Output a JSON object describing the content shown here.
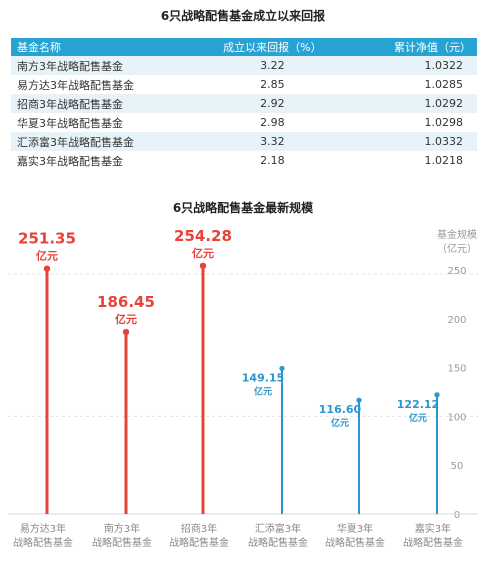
{
  "table_title": "6只战略配售基金成立以来回报",
  "table": {
    "headers": [
      "基金名称",
      "成立以来回报（%）",
      "累计净值（元）"
    ],
    "rows": [
      [
        "南方3年战略配售基金",
        "3.22",
        "1.0322"
      ],
      [
        "易方达3年战略配售基金",
        "2.85",
        "1.0285"
      ],
      [
        "招商3年战略配售基金",
        "2.92",
        "1.0292"
      ],
      [
        "华夏3年战略配售基金",
        "2.98",
        "1.0298"
      ],
      [
        "汇添富3年战略配售基金",
        "3.32",
        "1.0332"
      ],
      [
        "嘉实3年战略配售基金",
        "2.18",
        "1.0218"
      ]
    ]
  },
  "chart_data": {
    "type": "bar",
    "title": "6只战略配售基金最新规模",
    "ylabel_line1": "基金规模",
    "ylabel_line2": "（亿元）",
    "ylim": [
      0,
      250
    ],
    "yticks": [
      0,
      50,
      100,
      150,
      200,
      250
    ],
    "unit": "亿元",
    "categories": [
      [
        "易方达3年",
        "战略配售基金"
      ],
      [
        "南方3年",
        "战略配售基金"
      ],
      [
        "招商3年",
        "战略配售基金"
      ],
      [
        "汇添富3年",
        "战略配售基金"
      ],
      [
        "华夏3年",
        "战略配售基金"
      ],
      [
        "嘉实3年",
        "战略配售基金"
      ]
    ],
    "values": [
      251.35,
      186.45,
      254.28,
      149.15,
      116.6,
      122.12
    ],
    "value_labels": [
      "251.35",
      "186.45",
      "254.28",
      "149.15",
      "116.60",
      "122.12"
    ],
    "colors": [
      "#e8433a",
      "#e8433a",
      "#e8433a",
      "#2a97cf",
      "#2a97cf",
      "#2a97cf"
    ],
    "grid": "dashed-at-250-and-100"
  }
}
